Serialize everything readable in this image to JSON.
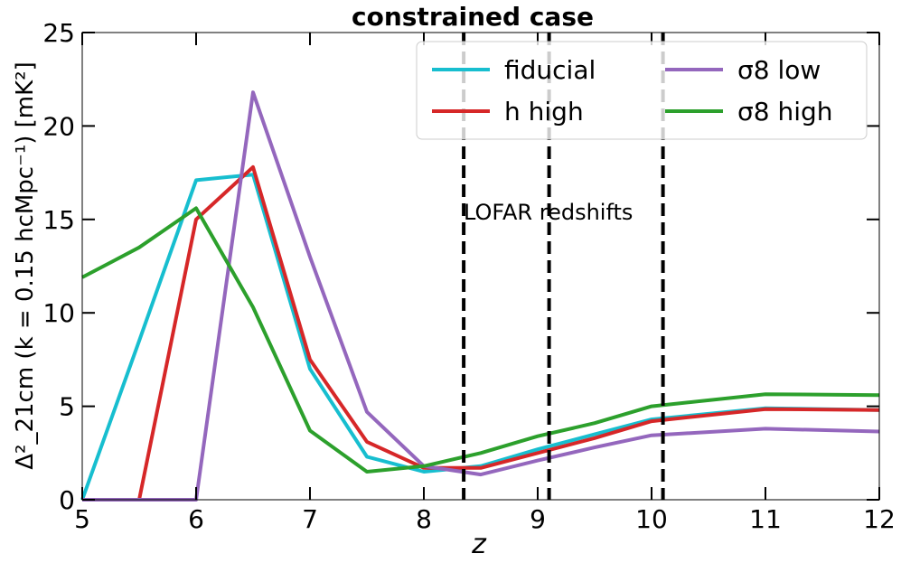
{
  "chart_data": {
    "type": "line",
    "title": "constrained case",
    "xlabel": "z",
    "ylabel": "Δ²_21cm (k = 0.15 hcMpc⁻¹) [mK²]",
    "xlim": [
      5,
      12
    ],
    "ylim": [
      0,
      25
    ],
    "x_ticks": [
      "5",
      "6",
      "7",
      "8",
      "9",
      "10",
      "11",
      "12"
    ],
    "y_ticks": [
      "0",
      "5",
      "10",
      "15",
      "20",
      "25"
    ],
    "grid": false,
    "legend_placement": "top-right",
    "series": [
      {
        "name": "fiducial",
        "color": "#17becf",
        "x": [
          5,
          5.5,
          6,
          6.5,
          7,
          7.5,
          8,
          8.5,
          9,
          9.5,
          10,
          11,
          12
        ],
        "y": [
          0.0,
          8.5,
          17.1,
          17.4,
          7.0,
          2.3,
          1.5,
          1.8,
          2.7,
          3.5,
          4.3,
          4.9,
          4.8
        ]
      },
      {
        "name": "h high",
        "color": "#d62728",
        "x": [
          5,
          5.5,
          6,
          6.5,
          7,
          7.5,
          8,
          8.5,
          9,
          9.5,
          10,
          11,
          12
        ],
        "y": [
          0.0,
          0.0,
          15.0,
          17.8,
          7.5,
          3.1,
          1.7,
          1.7,
          2.5,
          3.3,
          4.2,
          4.85,
          4.8
        ]
      },
      {
        "name": "σ8 low",
        "color": "#9467bd",
        "x": [
          5,
          5.5,
          6,
          6.5,
          7,
          7.5,
          8,
          8.5,
          9,
          9.5,
          10,
          11,
          12
        ],
        "y": [
          0.0,
          0.0,
          0.0,
          21.8,
          13.0,
          4.7,
          1.8,
          1.35,
          2.1,
          2.8,
          3.45,
          3.8,
          3.65
        ]
      },
      {
        "name": "σ8 high",
        "color": "#2ca02c",
        "x": [
          5,
          5.5,
          6,
          6.5,
          7,
          7.5,
          8,
          8.5,
          9,
          9.5,
          10,
          11,
          12
        ],
        "y": [
          11.9,
          13.5,
          15.6,
          10.3,
          3.7,
          1.5,
          1.8,
          2.5,
          3.4,
          4.1,
          5.0,
          5.65,
          5.6
        ]
      }
    ],
    "vertical_lines": [
      8.35,
      9.1,
      10.1
    ],
    "annotation": "LOFAR redshifts"
  }
}
